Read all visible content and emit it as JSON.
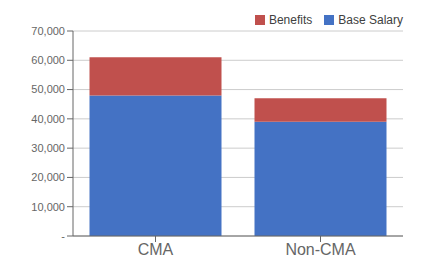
{
  "chart_data": {
    "type": "bar",
    "stacked": true,
    "categories": [
      "CMA",
      "Non-CMA"
    ],
    "series": [
      {
        "name": "Base Salary",
        "color": "#4472C4",
        "values": [
          48000,
          39000
        ]
      },
      {
        "name": "Benefits",
        "color": "#C0504D",
        "values": [
          13000,
          8000
        ]
      }
    ],
    "ylim": [
      0,
      70000
    ],
    "yticks": [
      {
        "value": 0,
        "label": "-"
      },
      {
        "value": 10000,
        "label": "10,000"
      },
      {
        "value": 20000,
        "label": "20,000"
      },
      {
        "value": 30000,
        "label": "30,000"
      },
      {
        "value": 40000,
        "label": "40,000"
      },
      {
        "value": 50000,
        "label": "50,000"
      },
      {
        "value": 60000,
        "label": "60,000"
      },
      {
        "value": 70000,
        "label": "70,000"
      }
    ],
    "grid": true,
    "legend": "upper right"
  }
}
